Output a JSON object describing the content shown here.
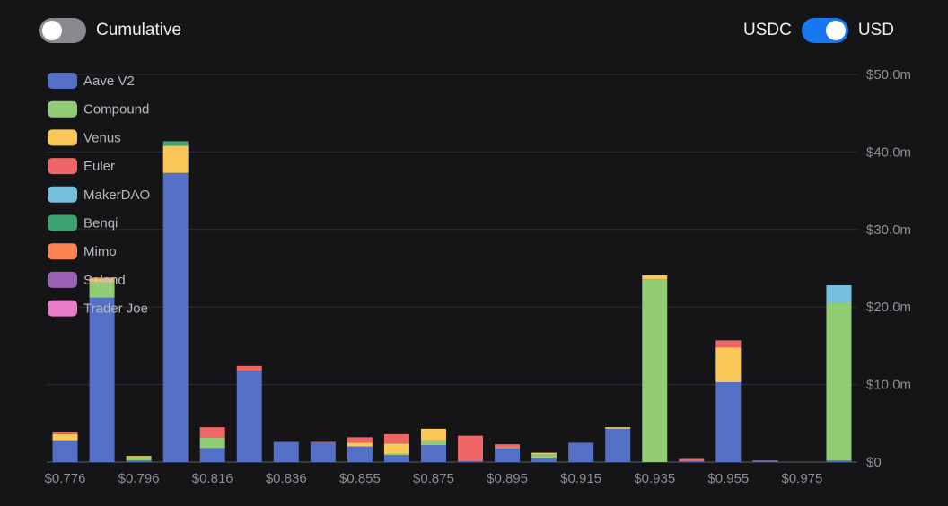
{
  "toggles": {
    "cumulative_label": "Cumulative",
    "cumulative_on": false,
    "left_label": "USDC",
    "right_label": "USD",
    "usd_on": true
  },
  "colors": {
    "background": "#151518",
    "toggle_on": "#1877f2",
    "toggle_off": "#8a8a8e",
    "grid": "#2e2e33"
  },
  "chart_data": {
    "type": "bar",
    "stacked": true,
    "title": "",
    "xlabel": "",
    "ylabel": "",
    "ylim": [
      0,
      50
    ],
    "y_ticks": [
      0,
      10,
      20,
      30,
      40,
      50
    ],
    "y_tick_labels": [
      "$0",
      "$10.0m",
      "$20.0m",
      "$30.0m",
      "$40.0m",
      "$50.0m"
    ],
    "y_axis_position": "right",
    "grid": true,
    "legend_position": "top-left",
    "x_tick_labels": [
      "$0.776",
      "$0.796",
      "$0.816",
      "$0.836",
      "$0.855",
      "$0.875",
      "$0.895",
      "$0.915",
      "$0.935",
      "$0.955",
      "$0.975"
    ],
    "x_tick_every": 2,
    "categories": [
      "$0.776",
      "",
      "$0.796",
      "",
      "$0.816",
      "",
      "$0.836",
      "",
      "$0.855",
      "",
      "$0.875",
      "",
      "$0.895",
      "",
      "$0.915",
      "",
      "$0.935",
      "",
      "$0.955",
      "",
      "$0.975",
      ""
    ],
    "series": [
      {
        "name": "Aave V2",
        "color": "#5470c6",
        "values": [
          2.8,
          21.2,
          0.2,
          37.3,
          1.8,
          11.8,
          2.6,
          2.5,
          2.0,
          0.9,
          2.2,
          0.1,
          1.8,
          0.5,
          2.5,
          4.3,
          0,
          0.1,
          10.3,
          0.1,
          0,
          0.2
        ]
      },
      {
        "name": "Compound",
        "color": "#91cc75",
        "values": [
          0,
          2.0,
          0.5,
          0,
          1.4,
          0,
          0,
          0,
          0,
          0.2,
          0.6,
          0,
          0,
          0.5,
          0,
          0,
          23.6,
          0,
          0,
          0,
          0,
          20.4
        ]
      },
      {
        "name": "Venus",
        "color": "#fac858",
        "values": [
          0.8,
          0.5,
          0.1,
          3.5,
          0,
          0,
          0,
          0,
          0.5,
          1.3,
          1.5,
          0,
          0.1,
          0.2,
          0,
          0.2,
          0.5,
          0,
          4.5,
          0,
          0,
          0
        ]
      },
      {
        "name": "Euler",
        "color": "#ee6666",
        "values": [
          0.3,
          0,
          0,
          0,
          1.3,
          0.6,
          0,
          0.1,
          0.7,
          1.2,
          0,
          3.3,
          0.4,
          0,
          0,
          0,
          0,
          0.3,
          0.9,
          0.1,
          0,
          0
        ]
      },
      {
        "name": "MakerDAO",
        "color": "#73c0de",
        "values": [
          0,
          0,
          0,
          0,
          0,
          0,
          0,
          0,
          0,
          0,
          0,
          0,
          0,
          0,
          0,
          0,
          0,
          0,
          0,
          0,
          0,
          2.2
        ]
      },
      {
        "name": "Benqi",
        "color": "#3ba272",
        "values": [
          0,
          0,
          0,
          0.6,
          0,
          0,
          0,
          0,
          0,
          0,
          0,
          0,
          0,
          0,
          0,
          0,
          0,
          0,
          0,
          0,
          0,
          0
        ]
      },
      {
        "name": "Mimo",
        "color": "#fc8452",
        "values": [
          0,
          0.1,
          0,
          0,
          0,
          0,
          0,
          0,
          0,
          0,
          0,
          0,
          0,
          0,
          0,
          0,
          0,
          0,
          0,
          0,
          0,
          0
        ]
      },
      {
        "name": "Solend",
        "color": "#9a60b4",
        "values": [
          0,
          0,
          0,
          0,
          0,
          0,
          0,
          0,
          0,
          0,
          0,
          0,
          0,
          0,
          0,
          0,
          0,
          0,
          0,
          0,
          0,
          0
        ]
      },
      {
        "name": "Trader Joe",
        "color": "#ea7ccc",
        "values": [
          0,
          0,
          0,
          0,
          0,
          0,
          0,
          0,
          0,
          0,
          0,
          0,
          0,
          0,
          0,
          0,
          0,
          0,
          0,
          0,
          0,
          0
        ]
      }
    ]
  }
}
